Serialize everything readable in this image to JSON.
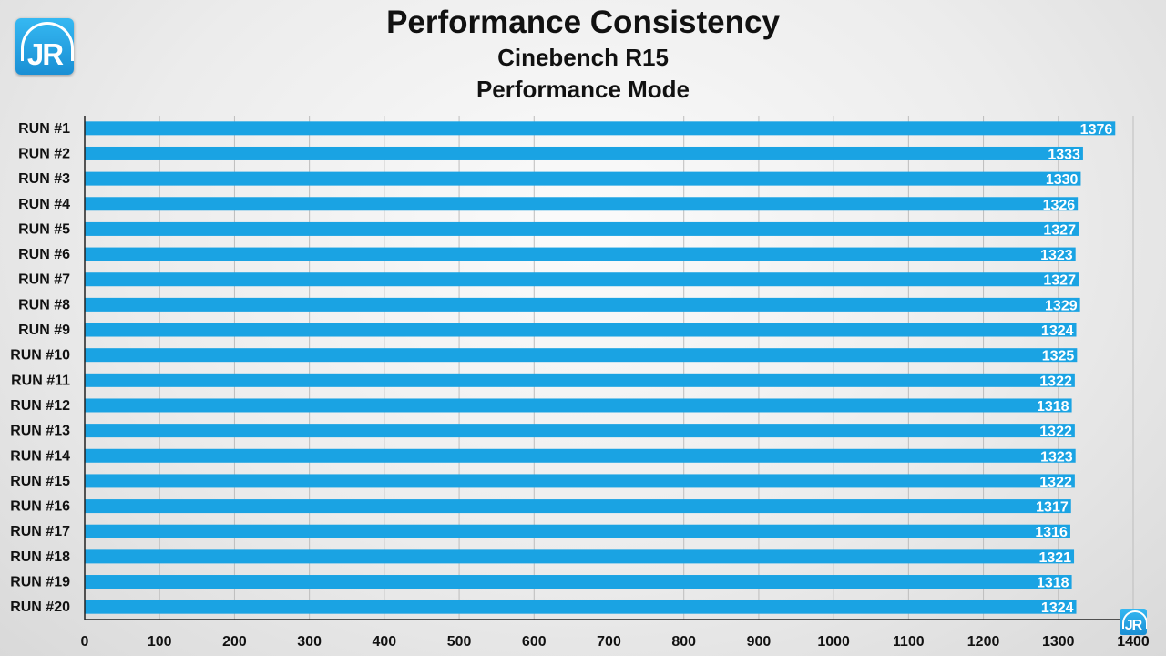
{
  "header": {
    "title": "Performance Consistency",
    "subtitle": "Cinebench R15",
    "subtitle2": "Performance Mode"
  },
  "logo": {
    "text": "JR",
    "color": "#2aa7e6"
  },
  "chart_data": {
    "type": "bar",
    "orientation": "horizontal",
    "title": "Performance Consistency",
    "subtitle": "Cinebench R15 Performance Mode",
    "categories": [
      "RUN #1",
      "RUN #2",
      "RUN #3",
      "RUN #4",
      "RUN #5",
      "RUN #6",
      "RUN #7",
      "RUN #8",
      "RUN #9",
      "RUN #10",
      "RUN #11",
      "RUN #12",
      "RUN #13",
      "RUN #14",
      "RUN #15",
      "RUN #16",
      "RUN #17",
      "RUN #18",
      "RUN #19",
      "RUN #20"
    ],
    "values": [
      1376,
      1333,
      1330,
      1326,
      1327,
      1323,
      1327,
      1329,
      1324,
      1325,
      1322,
      1318,
      1322,
      1323,
      1322,
      1317,
      1316,
      1321,
      1318,
      1324
    ],
    "xlim": [
      0,
      1400
    ],
    "xticks": [
      0,
      100,
      200,
      300,
      400,
      500,
      600,
      700,
      800,
      900,
      1000,
      1100,
      1200,
      1300,
      1400
    ],
    "xlabel": "",
    "ylabel": "",
    "grid": "vertical",
    "bar_color": "#1aa3e3",
    "data_labels": "inside-end"
  }
}
